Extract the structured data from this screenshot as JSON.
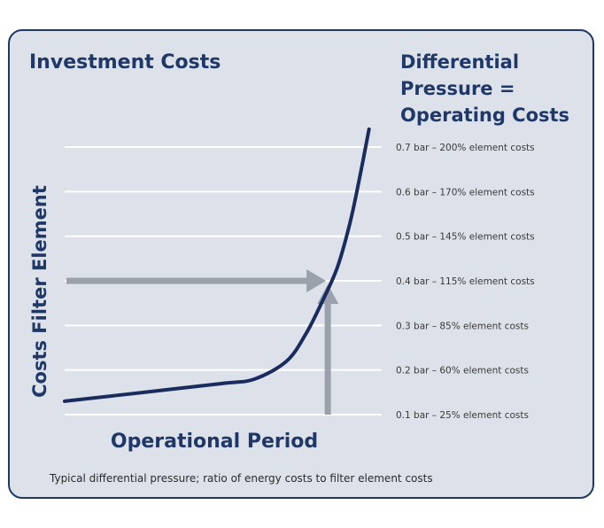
{
  "chart_data": {
    "type": "line",
    "title": "Investment Costs",
    "right_title": [
      "Differential",
      "Pressure =",
      "Operating Costs"
    ],
    "xlabel": "Operational Period",
    "ylabel": "Costs Filter Element",
    "caption": "Typical differential pressure; ratio of energy costs to filter element costs",
    "y_levels": [
      {
        "bar": 0.1,
        "label": "0.1 bar – 25% element costs"
      },
      {
        "bar": 0.2,
        "label": "0.2 bar – 60% element costs"
      },
      {
        "bar": 0.3,
        "label": "0.3 bar – 85% element costs"
      },
      {
        "bar": 0.4,
        "label": "0.4 bar – 115% element costs"
      },
      {
        "bar": 0.5,
        "label": "0.5 bar – 145% element costs"
      },
      {
        "bar": 0.6,
        "label": "0.6 bar – 170% element costs"
      },
      {
        "bar": 0.7,
        "label": "0.7 bar – 200% element costs"
      }
    ],
    "ylim": [
      0.1,
      0.7
    ],
    "grid": true,
    "series": [
      {
        "color": "#1a2b5e",
        "points": [
          [
            0.0,
            0.13
          ],
          [
            0.25,
            0.15
          ],
          [
            0.5,
            0.17
          ],
          [
            0.6,
            0.18
          ],
          [
            0.7,
            0.22
          ],
          [
            0.76,
            0.28
          ],
          [
            0.81,
            0.35
          ],
          [
            0.86,
            0.43
          ],
          [
            0.9,
            0.53
          ],
          [
            0.93,
            0.63
          ],
          [
            0.96,
            0.74
          ]
        ]
      }
    ],
    "operating_point": {
      "x": 0.83,
      "y": 0.4
    },
    "colors": {
      "grid": "#ffffff",
      "arrow": "#9aa1aa",
      "text": "#1f3868"
    }
  }
}
